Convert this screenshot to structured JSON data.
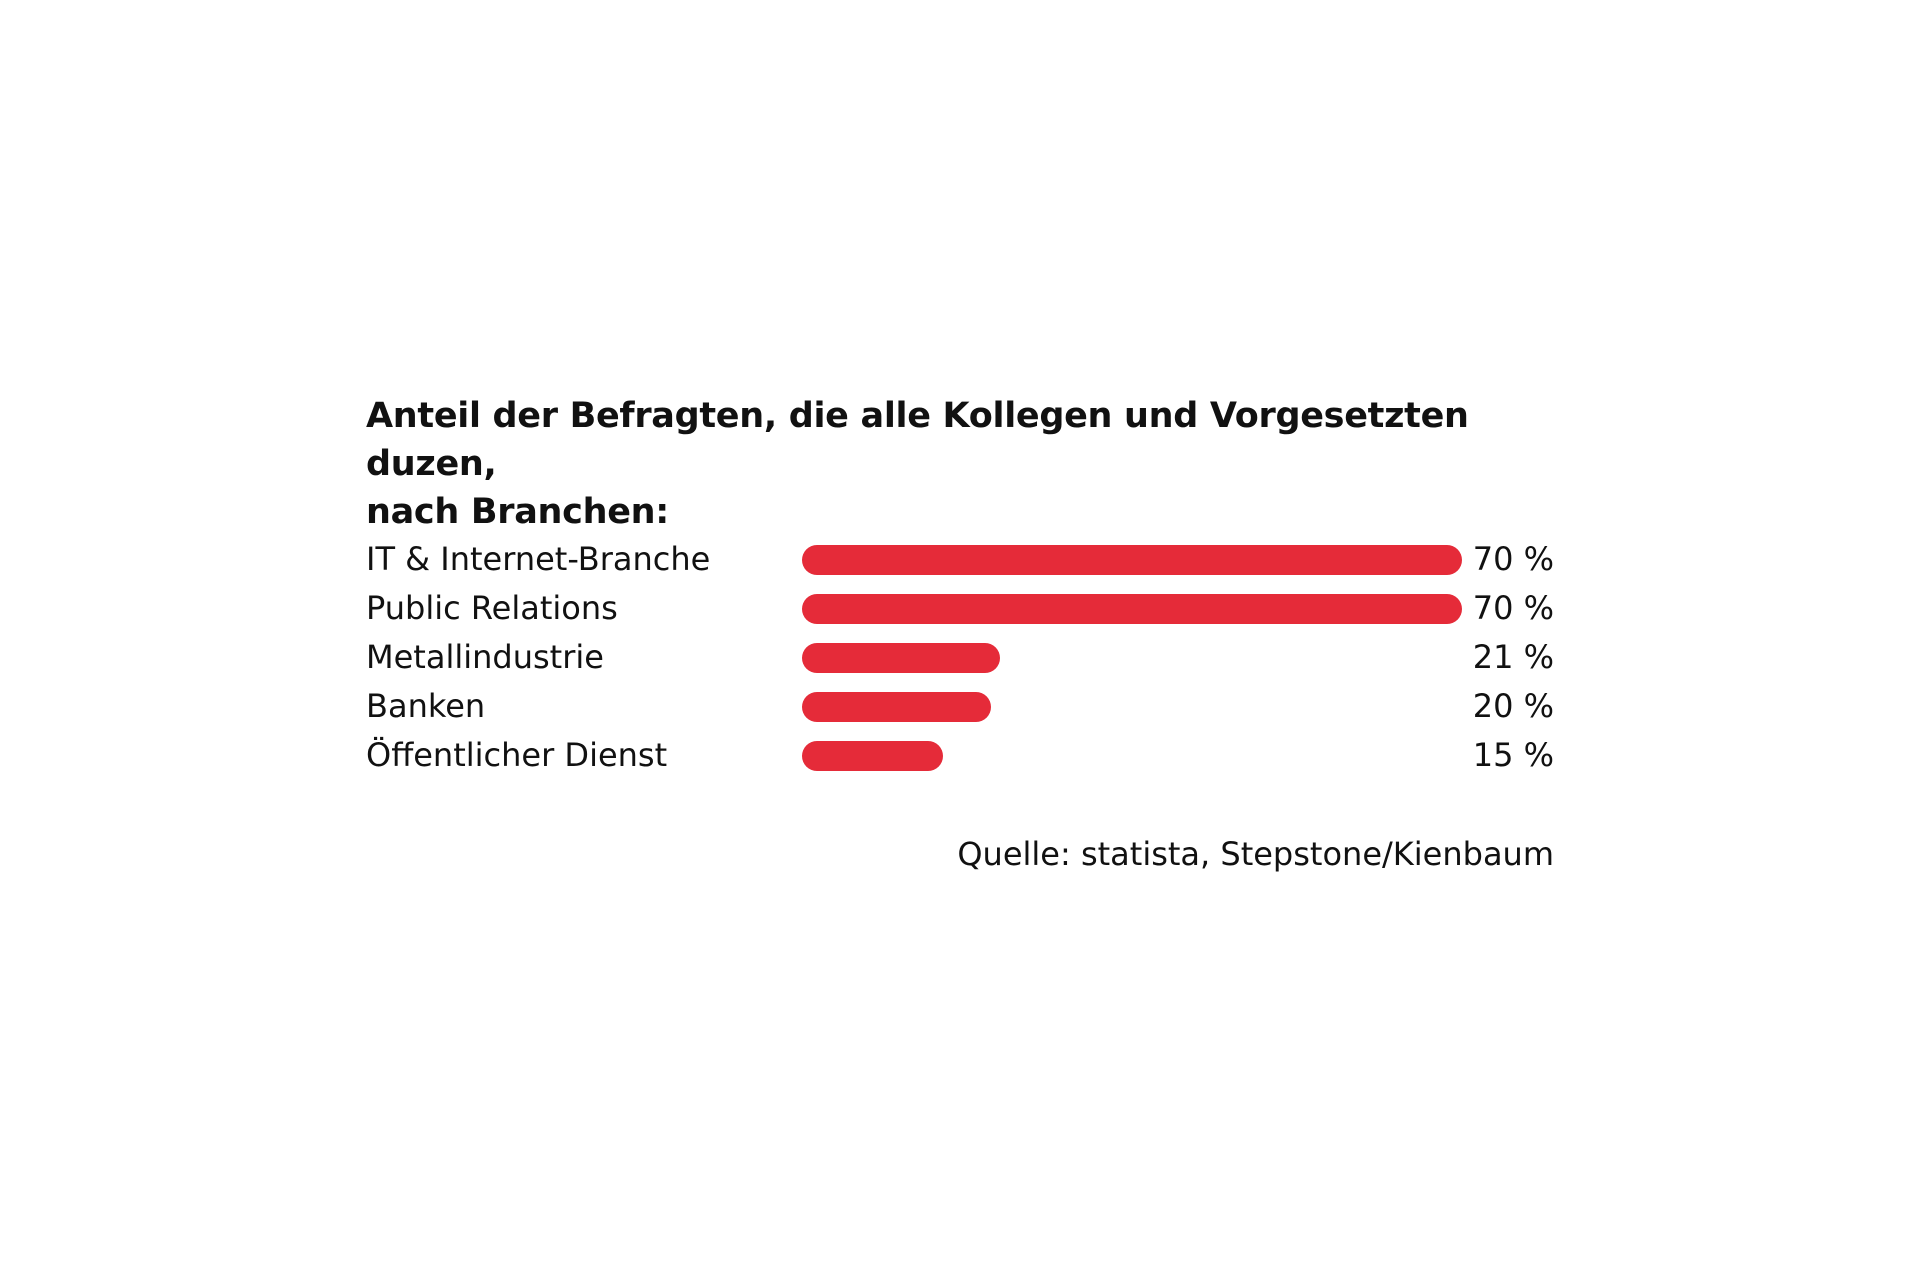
{
  "chart_data": {
    "type": "bar",
    "orientation": "horizontal",
    "title": "Anteil der Befragten, die alle Kollegen und Vorgesetzten duzen, nach Branchen:",
    "title_line1": "Anteil der Befragten, die alle Kollegen und Vorgesetzten duzen,",
    "title_line2": "nach Branchen:",
    "categories": [
      "IT & Internet-Branche",
      "Public Relations",
      "Metallindustrie",
      "Banken",
      "Öffentlicher Dienst"
    ],
    "values": [
      70,
      70,
      21,
      20,
      15
    ],
    "value_labels": [
      "70 %",
      "70 %",
      "21 %",
      "20 %",
      "15 %"
    ],
    "unit": "%",
    "xlim": [
      0,
      70
    ],
    "xlabel": "",
    "ylabel": "",
    "source": "Quelle: statista, Stepstone/Kienbaum",
    "bar_color": "#e52b39"
  }
}
